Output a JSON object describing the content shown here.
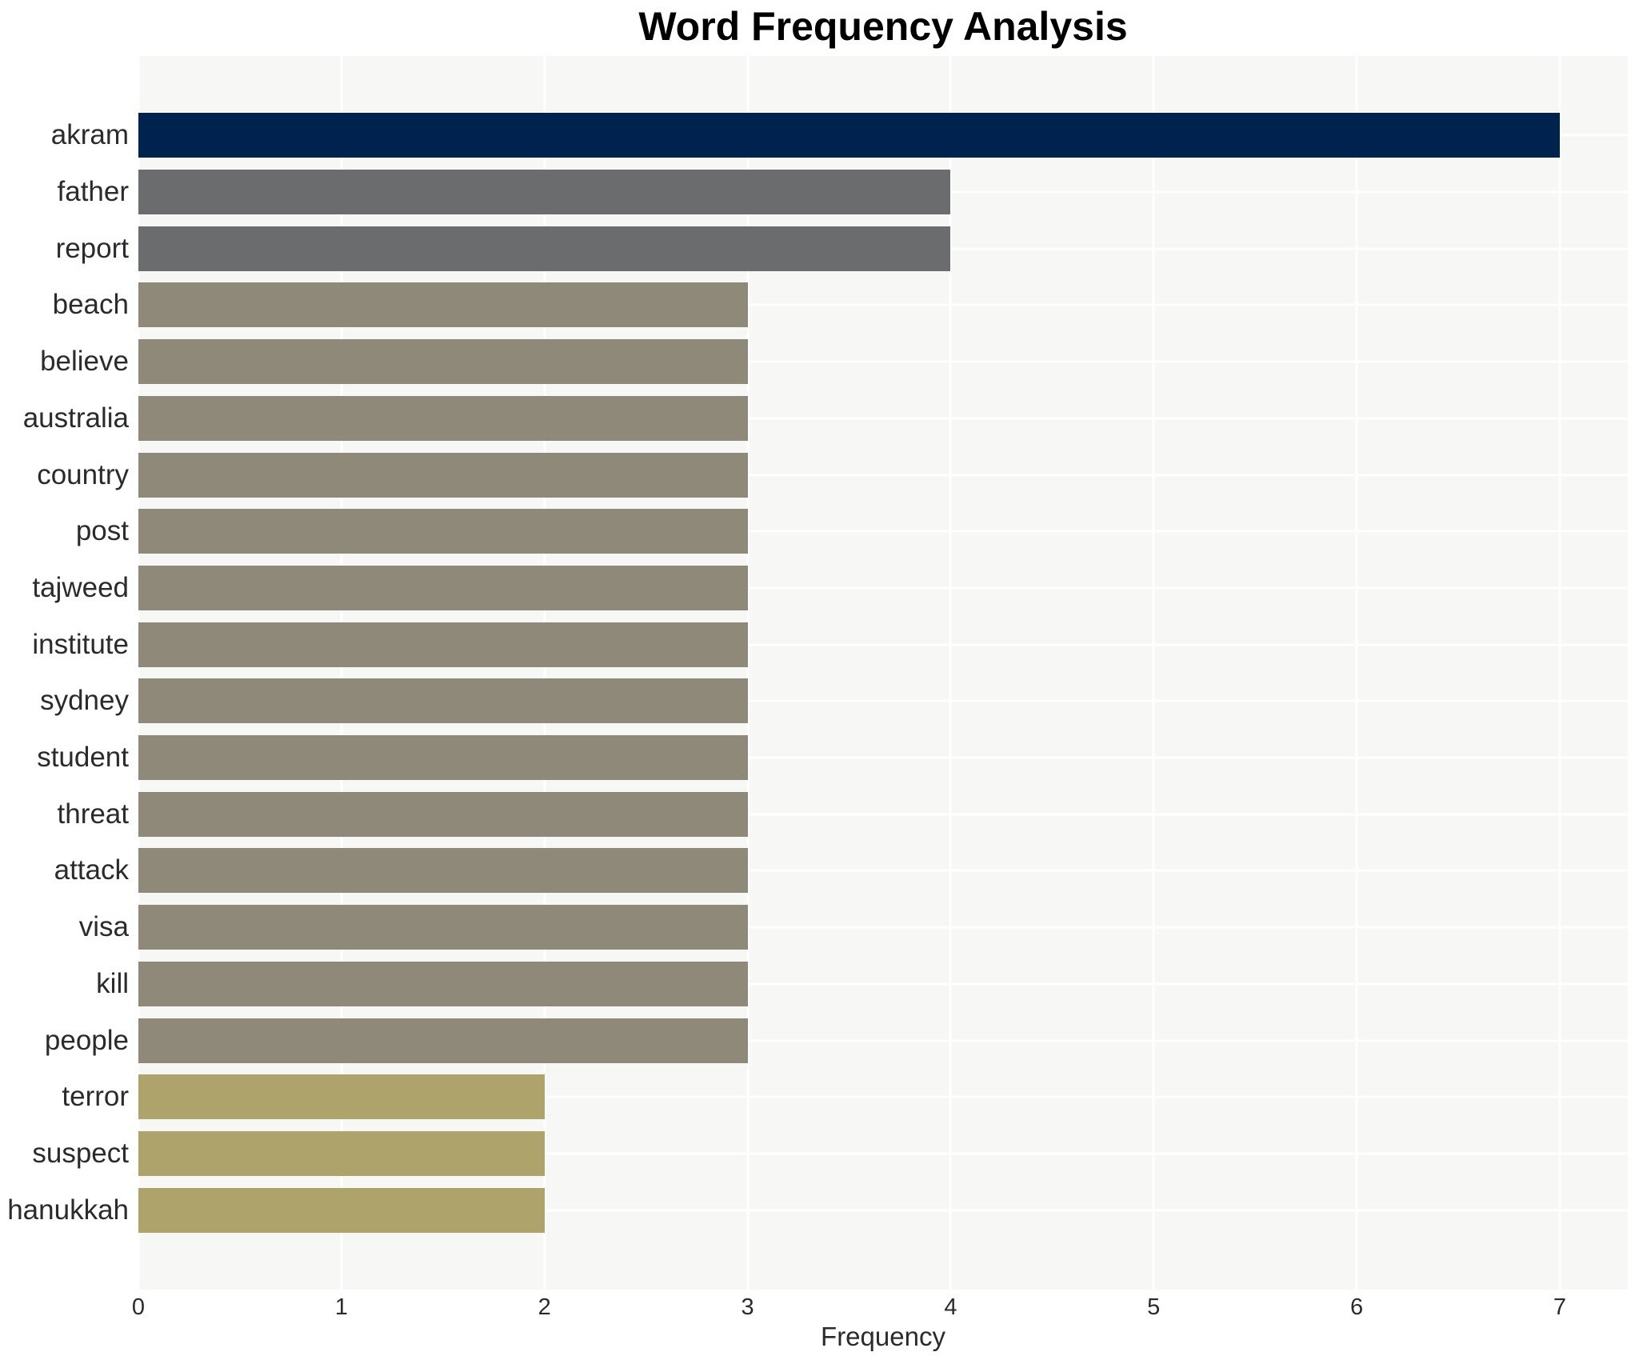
{
  "title": "Word Frequency Analysis",
  "xlabel": "Frequency",
  "colors": {
    "figure_background": "#ffffff",
    "plot_background": "#f7f7f5",
    "gridline": "#ffffff",
    "text": "#2b2b2b",
    "title_text": "#000000",
    "value7_bar": "#00224e",
    "value4_bar": "#6b6c6e",
    "value3_bar": "#8e8978",
    "value2_bar": "#aea36b"
  },
  "chart_data": {
    "type": "bar",
    "orientation": "horizontal",
    "title": "Word Frequency Analysis",
    "xlabel": "Frequency",
    "ylabel": "",
    "xlim": [
      0,
      7.33
    ],
    "grid": true,
    "legend": false,
    "categories": [
      "akram",
      "father",
      "report",
      "beach",
      "believe",
      "australia",
      "country",
      "post",
      "tajweed",
      "institute",
      "sydney",
      "student",
      "threat",
      "attack",
      "visa",
      "kill",
      "people",
      "terror",
      "suspect",
      "hanukkah"
    ],
    "values": [
      7,
      4,
      4,
      3,
      3,
      3,
      3,
      3,
      3,
      3,
      3,
      3,
      3,
      3,
      3,
      3,
      3,
      2,
      2,
      2
    ],
    "bar_colors": [
      "#00224e",
      "#6b6c6e",
      "#6b6c6e",
      "#8e8978",
      "#8e8978",
      "#8e8978",
      "#8e8978",
      "#8e8978",
      "#8e8978",
      "#8e8978",
      "#8e8978",
      "#8e8978",
      "#8e8978",
      "#8e8978",
      "#8e8978",
      "#8e8978",
      "#8e8978",
      "#aea36b",
      "#aea36b",
      "#aea36b"
    ],
    "x_ticks": [
      0,
      1,
      2,
      3,
      4,
      5,
      6,
      7
    ]
  }
}
